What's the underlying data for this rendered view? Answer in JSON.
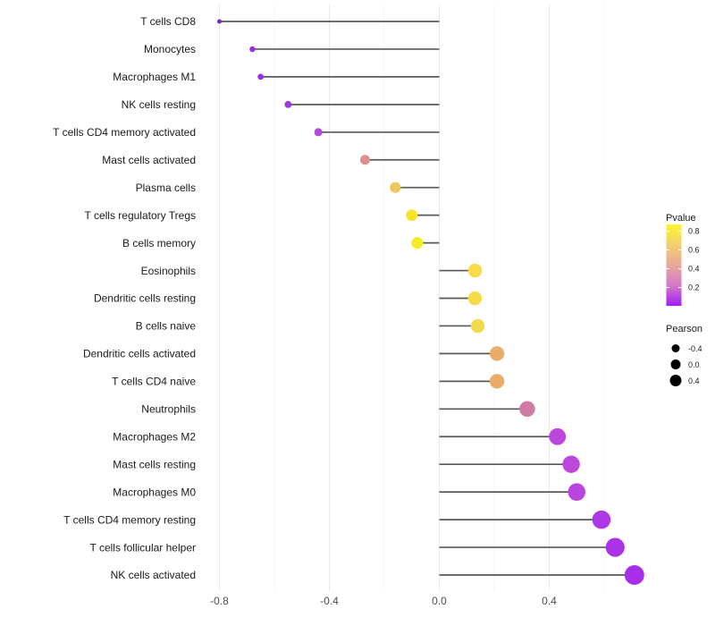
{
  "chart_data": {
    "type": "lollipop",
    "title": "",
    "xlabel": "",
    "x_ticks": [
      -0.8,
      -0.4,
      0.0,
      0.4
    ],
    "grid_values": [
      -0.8,
      -0.6,
      -0.4,
      -0.2,
      0.0,
      0.2,
      0.4,
      0.6
    ],
    "xlim": [
      -0.86,
      0.75
    ],
    "categories": [
      "T cells CD8",
      "Monocytes",
      "Macrophages M1",
      "NK cells resting",
      "T cells CD4 memory activated",
      "Mast cells activated",
      "Plasma cells",
      "T cells regulatory  Tregs",
      "B cells memory",
      "Eosinophils",
      "Dendritic cells resting",
      "B cells naive",
      "Dendritic cells activated",
      "T cells CD4 naive",
      "Neutrophils",
      "Macrophages M2",
      "Mast cells resting",
      "Macrophages M0",
      "T cells CD4 memory resting",
      "T cells follicular helper",
      "NK cells activated"
    ],
    "series": [
      {
        "name": "Pearson",
        "values": [
          -0.8,
          -0.68,
          -0.65,
          -0.55,
          -0.44,
          -0.27,
          -0.16,
          -0.1,
          -0.08,
          0.13,
          0.13,
          0.14,
          0.21,
          0.21,
          0.32,
          0.43,
          0.48,
          0.5,
          0.59,
          0.64,
          0.71
        ]
      }
    ],
    "point_colors": [
      "#7E22C0",
      "#9929EC",
      "#9C2CE6",
      "#A535DF",
      "#B14CD8",
      "#DF8F8E",
      "#EFC75A",
      "#F7E32A",
      "#F8EB28",
      "#F5DC48",
      "#F5DC48",
      "#F3DA4C",
      "#EAAC66",
      "#EAAC66",
      "#D07AA6",
      "#BC46DC",
      "#BE48DC",
      "#B846DE",
      "#AE38E6",
      "#AC32E8",
      "#A82EEA"
    ],
    "stem_color": "#585858",
    "grid_major_color": "#e9e9e9",
    "grid_minor_color": "#f4f4f4",
    "legend": {
      "pvalue": {
        "title": "Pvalue",
        "ticks": [
          "0.8",
          "0.6",
          "0.4",
          "0.2"
        ],
        "gradient": [
          "#FCF62B",
          "#F3CF70",
          "#E8A89C",
          "#D378C8",
          "#A21DF5"
        ]
      },
      "pearson": {
        "title": "Pearson",
        "labels": [
          "-0.4",
          "0.0",
          "0.4"
        ],
        "dot_color": "#000000"
      }
    }
  }
}
